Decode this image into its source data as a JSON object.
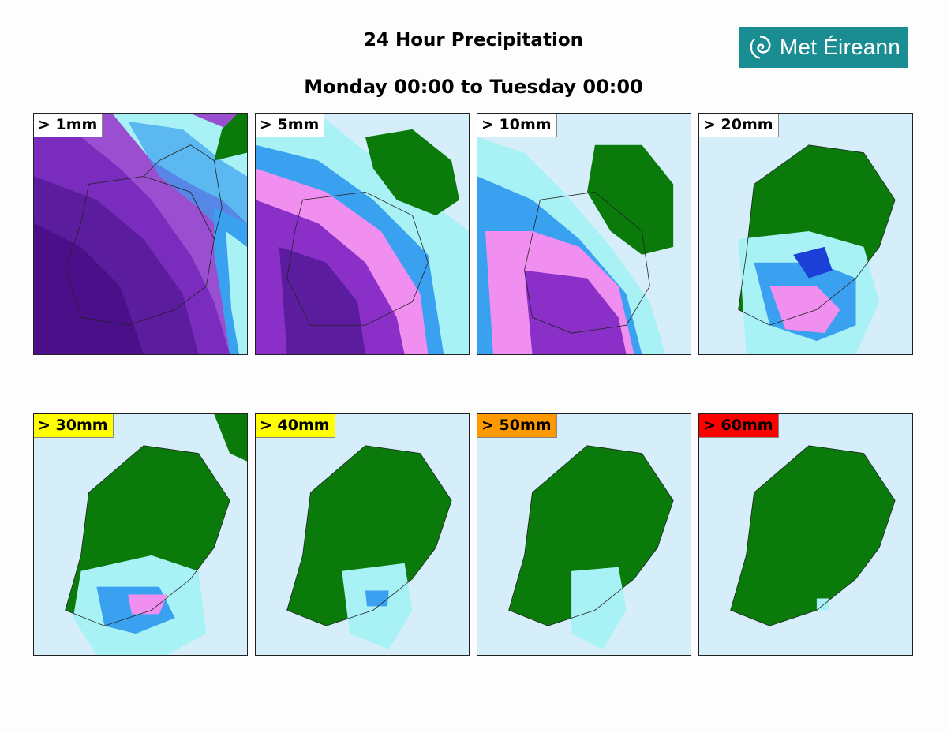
{
  "title": "24 Hour Precipitation",
  "subtitle": "Monday 00:00 to Tuesday 00:00",
  "logo": {
    "text": "Met Éireann",
    "icon": "swirl-icon",
    "background": "#1a8d92"
  },
  "panels": [
    {
      "label": "> 1mm",
      "badge_color": "#ffffff"
    },
    {
      "label": "> 5mm",
      "badge_color": "#ffffff"
    },
    {
      "label": "> 10mm",
      "badge_color": "#ffffff"
    },
    {
      "label": "> 20mm",
      "badge_color": "#ffffff"
    },
    {
      "label": "> 30mm",
      "badge_color": "#ffff00"
    },
    {
      "label": "> 40mm",
      "badge_color": "#ffff00"
    },
    {
      "label": "> 50mm",
      "badge_color": "#ff9900"
    },
    {
      "label": "> 60mm",
      "badge_color": "#ff0000"
    }
  ],
  "colors": {
    "sea": "#d6eefa",
    "land": "#0a7a0a",
    "prob_light": "#a8f2f5",
    "prob_mid": "#3aa0f0",
    "prob_blue": "#1c3fd8",
    "prob_pink": "#f08ff0",
    "prob_purple": "#8a30c8",
    "prob_dark": "#4c0f8a"
  }
}
